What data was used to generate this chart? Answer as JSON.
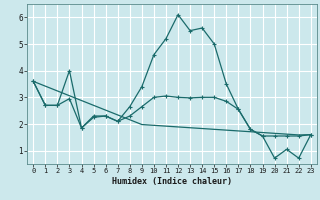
{
  "xlabel": "Humidex (Indice chaleur)",
  "xlim": [
    -0.5,
    23.5
  ],
  "ylim": [
    0.5,
    6.5
  ],
  "yticks": [
    1,
    2,
    3,
    4,
    5,
    6
  ],
  "xticks": [
    0,
    1,
    2,
    3,
    4,
    5,
    6,
    7,
    8,
    9,
    10,
    11,
    12,
    13,
    14,
    15,
    16,
    17,
    18,
    19,
    20,
    21,
    22,
    23
  ],
  "background_color": "#cce8ec",
  "grid_color": "#ffffff",
  "line_color": "#1a6b6b",
  "series1_y": [
    3.6,
    2.7,
    2.7,
    4.0,
    1.85,
    2.3,
    2.3,
    2.1,
    2.65,
    3.4,
    4.6,
    5.2,
    6.1,
    5.5,
    5.6,
    5.0,
    3.5,
    2.55,
    1.8,
    1.55,
    0.72,
    1.05,
    0.72,
    1.6
  ],
  "series2_y": [
    3.6,
    3.42,
    3.24,
    3.06,
    2.88,
    2.7,
    2.52,
    2.34,
    2.16,
    1.98,
    1.95,
    1.92,
    1.89,
    1.86,
    1.83,
    1.8,
    1.77,
    1.74,
    1.71,
    1.68,
    1.65,
    1.62,
    1.59,
    1.6
  ],
  "series3_y": [
    3.6,
    2.7,
    2.7,
    2.95,
    1.85,
    2.25,
    2.3,
    2.1,
    2.3,
    2.65,
    3.0,
    3.05,
    3.0,
    2.98,
    3.0,
    3.0,
    2.85,
    2.55,
    1.8,
    1.55,
    1.55,
    1.55,
    1.55,
    1.6
  ]
}
